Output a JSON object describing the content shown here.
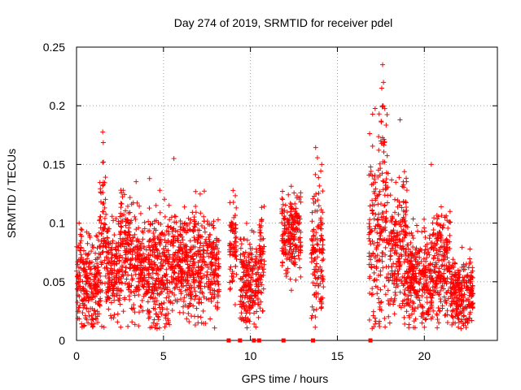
{
  "chart_data": {
    "type": "scatter",
    "title": "Day 274 of 2019, SRMTID for receiver pdel",
    "xlabel": "GPS time / hours",
    "ylabel": "SRMTID / TECUs",
    "xlim": [
      0,
      24.2
    ],
    "ylim": [
      0,
      0.25
    ],
    "x_ticks": [
      0,
      5,
      10,
      15,
      20
    ],
    "x_tick_labels": [
      "0",
      "5",
      "10",
      "15",
      "20"
    ],
    "y_ticks": [
      0,
      0.05,
      0.1,
      0.15,
      0.2,
      0.25
    ],
    "y_tick_labels": [
      "0",
      "0.05",
      "0.1",
      "0.15",
      "0.2",
      "0.25"
    ],
    "grid": true,
    "marker": "plus",
    "series_color": "#ff0000",
    "gap_markers": {
      "description": "small red squares on x-axis at y=0",
      "x": [
        8.75,
        9.4,
        10.2,
        10.5,
        11.9,
        13.6,
        16.9
      ]
    },
    "series": [
      {
        "name": "SRMTID",
        "segments": [
          {
            "x_range": [
              0.0,
              1.3
            ],
            "mean": 0.05,
            "spread": 0.02
          },
          {
            "x_range": [
              1.3,
              1.7
            ],
            "mean": 0.09,
            "spread": 0.035
          },
          {
            "x_range": [
              1.7,
              2.5
            ],
            "mean": 0.06,
            "spread": 0.02
          },
          {
            "x_range": [
              2.5,
              3.5
            ],
            "mean": 0.075,
            "spread": 0.025
          },
          {
            "x_range": [
              3.5,
              4.2
            ],
            "mean": 0.06,
            "spread": 0.02
          },
          {
            "x_range": [
              4.2,
              5.5
            ],
            "mean": 0.06,
            "spread": 0.025
          },
          {
            "x_range": [
              5.5,
              8.2
            ],
            "mean": 0.065,
            "spread": 0.022
          },
          {
            "x_range": [
              8.8,
              9.2
            ],
            "mean": 0.08,
            "spread": 0.02
          },
          {
            "x_range": [
              9.4,
              10.5
            ],
            "mean": 0.05,
            "spread": 0.02
          },
          {
            "x_range": [
              10.5,
              10.8
            ],
            "mean": 0.07,
            "spread": 0.02
          },
          {
            "x_range": [
              11.8,
              12.9
            ],
            "mean": 0.09,
            "spread": 0.018
          },
          {
            "x_range": [
              13.5,
              14.2
            ],
            "mean": 0.075,
            "spread": 0.03
          },
          {
            "x_range": [
              16.8,
              17.5
            ],
            "mean": 0.09,
            "spread": 0.04
          },
          {
            "x_range": [
              17.5,
              17.9
            ],
            "mean": 0.12,
            "spread": 0.05
          },
          {
            "x_range": [
              17.9,
              19.0
            ],
            "mean": 0.08,
            "spread": 0.03
          },
          {
            "x_range": [
              19.0,
              20.5
            ],
            "mean": 0.055,
            "spread": 0.02
          },
          {
            "x_range": [
              20.5,
              21.5
            ],
            "mean": 0.065,
            "spread": 0.025
          },
          {
            "x_range": [
              21.5,
              22.8
            ],
            "mean": 0.04,
            "spread": 0.015
          }
        ],
        "highlighted_points": [
          {
            "x": 17.6,
            "y": 0.235
          },
          {
            "x": 17.65,
            "y": 0.22
          },
          {
            "x": 17.55,
            "y": 0.215
          },
          {
            "x": 17.4,
            "y": 0.193
          },
          {
            "x": 17.5,
            "y": 0.17
          },
          {
            "x": 18.6,
            "y": 0.188
          },
          {
            "x": 5.6,
            "y": 0.155
          },
          {
            "x": 1.55,
            "y": 0.152
          },
          {
            "x": 20.4,
            "y": 0.15
          },
          {
            "x": 14.1,
            "y": 0.15
          },
          {
            "x": 4.2,
            "y": 0.138
          },
          {
            "x": 0.15,
            "y": 0.1
          },
          {
            "x": 0.45,
            "y": 0.013
          },
          {
            "x": 22.4,
            "y": 0.011
          }
        ]
      }
    ]
  }
}
